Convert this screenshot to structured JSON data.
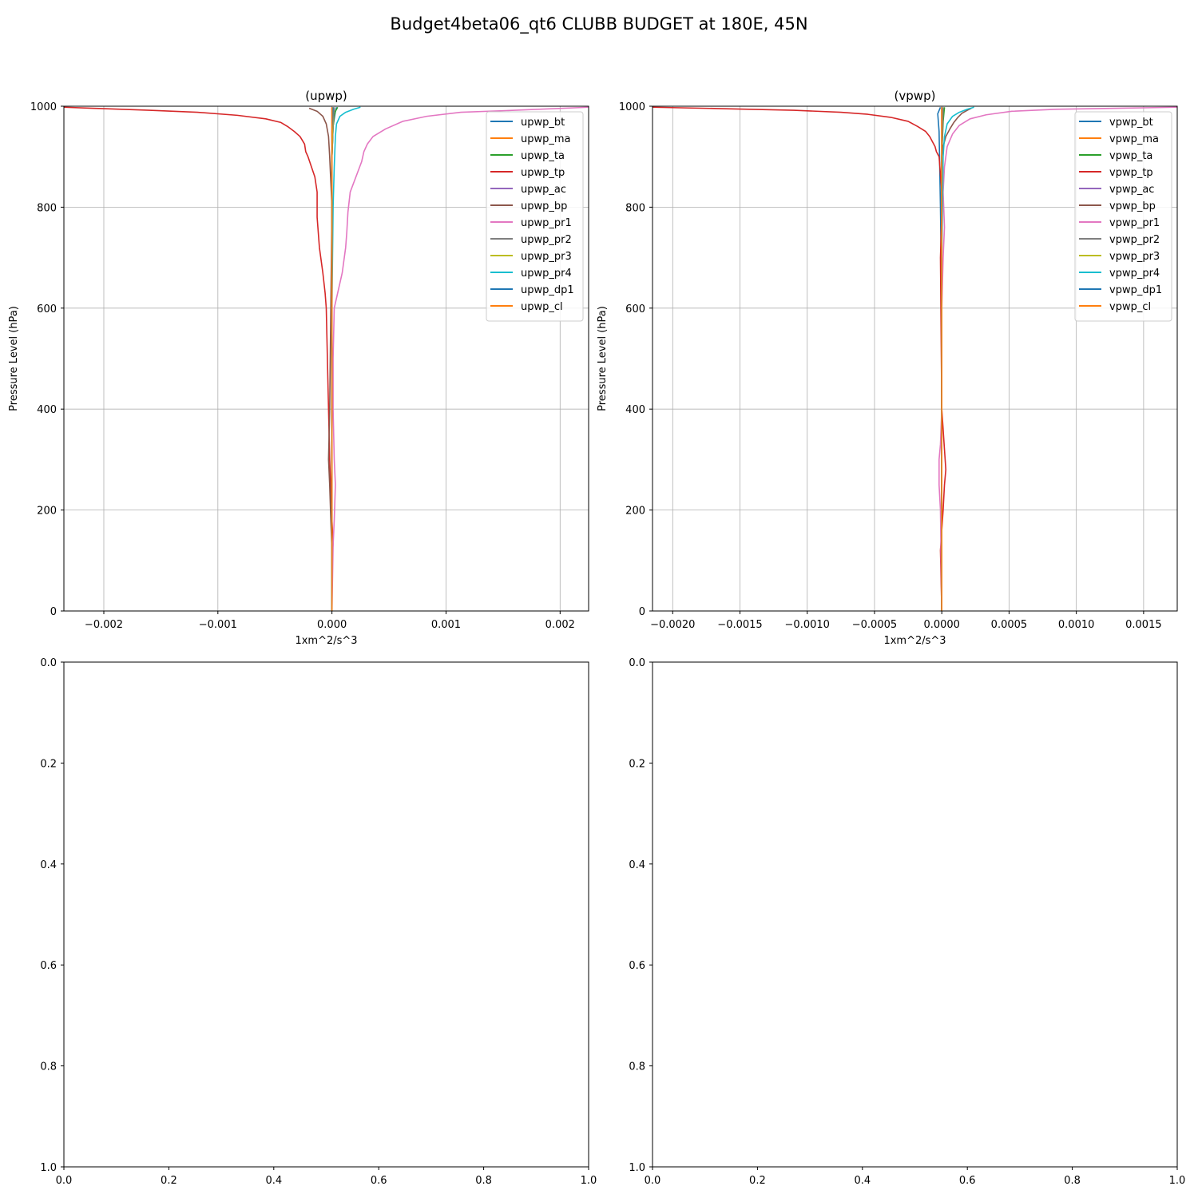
{
  "figure": {
    "suptitle": "Budget4beta06_qt6 CLUBB BUDGET at 180E, 45N"
  },
  "colors": {
    "tab10": [
      "#1f77b4",
      "#ff7f0e",
      "#2ca02c",
      "#d62728",
      "#9467bd",
      "#8c564b",
      "#e377c2",
      "#7f7f7f",
      "#bcbd22",
      "#17becf"
    ],
    "grid": "#b0b0b0",
    "axes": "#000000"
  },
  "chart_data": [
    {
      "type": "line",
      "title": "(upwp)",
      "xlabel": "1xm^2/s^3",
      "ylabel": "Pressure Level (hPa)",
      "xlim": [
        -0.00235,
        0.00225
      ],
      "ylim": [
        1000,
        0
      ],
      "xticks": [
        -0.002,
        -0.001,
        0.0,
        0.001,
        0.002
      ],
      "xtick_labels": [
        "−0.002",
        "−0.001",
        "0.000",
        "0.001",
        "0.002"
      ],
      "yticks": [
        0,
        200,
        400,
        600,
        800,
        1000
      ],
      "ytick_labels": [
        "0",
        "200",
        "400",
        "600",
        "800",
        "1000"
      ],
      "grid": true,
      "legend": "upper right",
      "series": [
        {
          "name": "upwp_bt",
          "color": "#1f77b4",
          "x": [
            0,
            0,
            0,
            0,
            0,
            0,
            1e-05,
            3e-05,
            4e-05
          ],
          "y": [
            0,
            200,
            400,
            600,
            800,
            900,
            960,
            990,
            998
          ]
        },
        {
          "name": "upwp_ma",
          "color": "#ff7f0e",
          "x": [
            0,
            0,
            0,
            0,
            0,
            0
          ],
          "y": [
            0,
            200,
            400,
            600,
            800,
            998
          ]
        },
        {
          "name": "upwp_ta",
          "color": "#2ca02c",
          "x": [
            0,
            0,
            0,
            0,
            1e-05,
            2e-05,
            3e-05,
            5e-05
          ],
          "y": [
            0,
            400,
            700,
            900,
            960,
            980,
            990,
            998
          ]
        },
        {
          "name": "upwp_tp",
          "color": "#d62728",
          "x": [
            0,
            0,
            1e-05,
            0,
            -2e-05,
            -4e-05,
            -5e-05,
            -6e-05,
            -8e-05,
            -0.00011,
            -0.00013,
            -0.00013,
            -0.00015,
            -0.00018,
            -0.00021,
            -0.00023,
            -0.00024,
            -0.00028,
            -0.00033,
            -0.00039,
            -0.00045,
            -0.00058,
            -0.00083,
            -0.00118,
            -0.0016,
            -0.0021,
            -0.00235
          ],
          "y": [
            0,
            100,
            135,
            180,
            300,
            500,
            600,
            630,
            670,
            720,
            780,
            830,
            860,
            880,
            900,
            910,
            925,
            940,
            950,
            960,
            968,
            975,
            982,
            988,
            992,
            996,
            998
          ]
        },
        {
          "name": "upwp_ac",
          "color": "#9467bd",
          "x": [
            0,
            0,
            0,
            0
          ],
          "y": [
            0,
            500,
            900,
            998
          ]
        },
        {
          "name": "upwp_bp",
          "color": "#8c564b",
          "x": [
            0,
            0,
            -1e-05,
            -2e-05,
            -3e-05,
            -2e-05,
            -1e-05,
            0,
            -1e-05,
            -2e-05,
            -3e-05,
            -5e-05,
            -8e-05,
            -0.00013,
            -0.0002
          ],
          "y": [
            0,
            120,
            180,
            250,
            300,
            400,
            600,
            800,
            850,
            900,
            940,
            965,
            980,
            990,
            996
          ]
        },
        {
          "name": "upwp_pr1",
          "color": "#e377c2",
          "x": [
            0,
            1e-05,
            2e-05,
            3e-05,
            2e-05,
            1e-05,
            1e-05,
            2e-05,
            6e-05,
            9e-05,
            0.00012,
            0.00013,
            0.00014,
            0.00016,
            0.00021,
            0.00026,
            0.00028,
            0.00031,
            0.00036,
            0.00047,
            0.00062,
            0.00083,
            0.00113,
            0.0016,
            0.00225
          ],
          "y": [
            0,
            130,
            180,
            250,
            300,
            400,
            500,
            600,
            640,
            670,
            720,
            750,
            790,
            830,
            860,
            890,
            910,
            925,
            940,
            955,
            970,
            980,
            988,
            992,
            998
          ]
        },
        {
          "name": "upwp_pr2",
          "color": "#7f7f7f",
          "x": [
            0,
            0,
            1e-05,
            2e-05
          ],
          "y": [
            0,
            900,
            960,
            998
          ]
        },
        {
          "name": "upwp_pr3",
          "color": "#bcbd22",
          "x": [
            0,
            0,
            0,
            1e-05
          ],
          "y": [
            0,
            600,
            900,
            998
          ]
        },
        {
          "name": "upwp_pr4",
          "color": "#17becf",
          "x": [
            0,
            0,
            1e-05,
            2e-05,
            3e-05,
            4e-05,
            7e-05,
            0.00012,
            0.00019,
            0.00025
          ],
          "y": [
            0,
            600,
            800,
            880,
            940,
            965,
            980,
            988,
            994,
            998
          ]
        },
        {
          "name": "upwp_dp1",
          "color": "#1f77b4",
          "x": [
            0,
            0,
            0,
            1e-05
          ],
          "y": [
            0,
            600,
            950,
            998
          ]
        },
        {
          "name": "upwp_cl",
          "color": "#ff7f0e",
          "x": [
            0,
            0,
            0,
            0
          ],
          "y": [
            0,
            400,
            800,
            998
          ]
        }
      ]
    },
    {
      "type": "line",
      "title": "(vpwp)",
      "xlabel": "1xm^2/s^3",
      "ylabel": "Pressure Level (hPa)",
      "xlim": [
        -0.00215,
        0.00175
      ],
      "ylim": [
        1000,
        0
      ],
      "xticks": [
        -0.002,
        -0.0015,
        -0.001,
        -0.0005,
        0.0,
        0.0005,
        0.001,
        0.0015
      ],
      "xtick_labels": [
        "−0.0020",
        "−0.0015",
        "−0.0010",
        "−0.0005",
        "0.0000",
        "0.0005",
        "0.0010",
        "0.0015"
      ],
      "yticks": [
        0,
        200,
        400,
        600,
        800,
        1000
      ],
      "ytick_labels": [
        "0",
        "200",
        "400",
        "600",
        "800",
        "1000"
      ],
      "grid": true,
      "legend": "upper right",
      "series": [
        {
          "name": "vpwp_bt",
          "color": "#1f77b4",
          "x": [
            0,
            0,
            0,
            0,
            -1e-05,
            -2e-05,
            -3e-05,
            -1e-05
          ],
          "y": [
            0,
            200,
            400,
            600,
            800,
            950,
            985,
            998
          ]
        },
        {
          "name": "vpwp_ma",
          "color": "#ff7f0e",
          "x": [
            0,
            0,
            0,
            0
          ],
          "y": [
            0,
            400,
            800,
            998
          ]
        },
        {
          "name": "vpwp_ta",
          "color": "#2ca02c",
          "x": [
            0,
            0,
            0,
            1e-05,
            2e-05
          ],
          "y": [
            0,
            500,
            900,
            970,
            998
          ]
        },
        {
          "name": "vpwp_tp",
          "color": "#d62728",
          "x": [
            0,
            -1e-05,
            1e-05,
            2e-05,
            3e-05,
            2e-05,
            0,
            -1e-05,
            0,
            0,
            -2e-05,
            -4e-05,
            -5e-05,
            -7e-05,
            -9e-05,
            -0.00012,
            -0.00018,
            -0.00025,
            -0.00038,
            -0.00055,
            -0.00075,
            -0.0011,
            -0.0016,
            -0.00215
          ],
          "y": [
            0,
            120,
            200,
            250,
            280,
            320,
            400,
            700,
            790,
            830,
            900,
            910,
            920,
            930,
            940,
            950,
            960,
            970,
            978,
            984,
            988,
            992,
            995,
            998
          ]
        },
        {
          "name": "vpwp_ac",
          "color": "#9467bd",
          "x": [
            0,
            0,
            0,
            0
          ],
          "y": [
            0,
            500,
            900,
            998
          ]
        },
        {
          "name": "vpwp_bp",
          "color": "#8c564b",
          "x": [
            0,
            0,
            0,
            0,
            1e-05,
            3e-05,
            6e-05,
            9e-05,
            0.00012,
            0.00015,
            0.00019,
            0.00022
          ],
          "y": [
            0,
            400,
            800,
            900,
            920,
            940,
            955,
            968,
            978,
            986,
            992,
            996
          ]
        },
        {
          "name": "vpwp_pr1",
          "color": "#e377c2",
          "x": [
            0,
            -1e-05,
            -2e-05,
            -2e-05,
            -1e-05,
            0,
            0,
            1e-05,
            2e-05,
            1e-05,
            2e-05,
            4e-05,
            8e-05,
            0.00013,
            0.00021,
            0.00033,
            0.00052,
            0.00085,
            0.0013,
            0.00175
          ],
          "y": [
            0,
            200,
            250,
            300,
            330,
            400,
            600,
            700,
            760,
            830,
            880,
            920,
            945,
            962,
            975,
            983,
            990,
            994,
            996,
            998
          ]
        },
        {
          "name": "vpwp_pr2",
          "color": "#7f7f7f",
          "x": [
            0,
            0,
            0,
            1e-05
          ],
          "y": [
            0,
            500,
            900,
            998
          ]
        },
        {
          "name": "vpwp_pr3",
          "color": "#bcbd22",
          "x": [
            0,
            0,
            0,
            0
          ],
          "y": [
            0,
            500,
            900,
            998
          ]
        },
        {
          "name": "vpwp_pr4",
          "color": "#17becf",
          "x": [
            0,
            0,
            1e-05,
            2e-05,
            4e-05,
            8e-05,
            0.00013,
            0.00019,
            0.00024
          ],
          "y": [
            0,
            700,
            900,
            940,
            965,
            980,
            988,
            994,
            998
          ]
        },
        {
          "name": "vpwp_dp1",
          "color": "#1f77b4",
          "x": [
            0,
            0,
            0,
            0
          ],
          "y": [
            0,
            500,
            900,
            998
          ]
        },
        {
          "name": "vpwp_cl",
          "color": "#ff7f0e",
          "x": [
            0,
            0,
            0,
            0
          ],
          "y": [
            0,
            400,
            800,
            998
          ]
        }
      ]
    },
    {
      "type": "line",
      "title": "",
      "xlabel": "",
      "ylabel": "",
      "xlim": [
        0,
        1
      ],
      "ylim": [
        0,
        1
      ],
      "xticks": [
        0,
        0.2,
        0.4,
        0.6,
        0.8,
        1.0
      ],
      "xtick_labels": [
        "0.0",
        "0.2",
        "0.4",
        "0.6",
        "0.8",
        "1.0"
      ],
      "yticks": [
        0,
        0.2,
        0.4,
        0.6,
        0.8,
        1.0
      ],
      "ytick_labels": [
        "0.0",
        "0.2",
        "0.4",
        "0.6",
        "0.8",
        "1.0"
      ],
      "grid": false,
      "series": []
    },
    {
      "type": "line",
      "title": "",
      "xlabel": "",
      "ylabel": "",
      "xlim": [
        0,
        1
      ],
      "ylim": [
        0,
        1
      ],
      "xticks": [
        0,
        0.2,
        0.4,
        0.6,
        0.8,
        1.0
      ],
      "xtick_labels": [
        "0.0",
        "0.2",
        "0.4",
        "0.6",
        "0.8",
        "1.0"
      ],
      "yticks": [
        0,
        0.2,
        0.4,
        0.6,
        0.8,
        1.0
      ],
      "ytick_labels": [
        "0.0",
        "0.2",
        "0.4",
        "0.6",
        "0.8",
        "1.0"
      ],
      "grid": false,
      "series": []
    }
  ]
}
